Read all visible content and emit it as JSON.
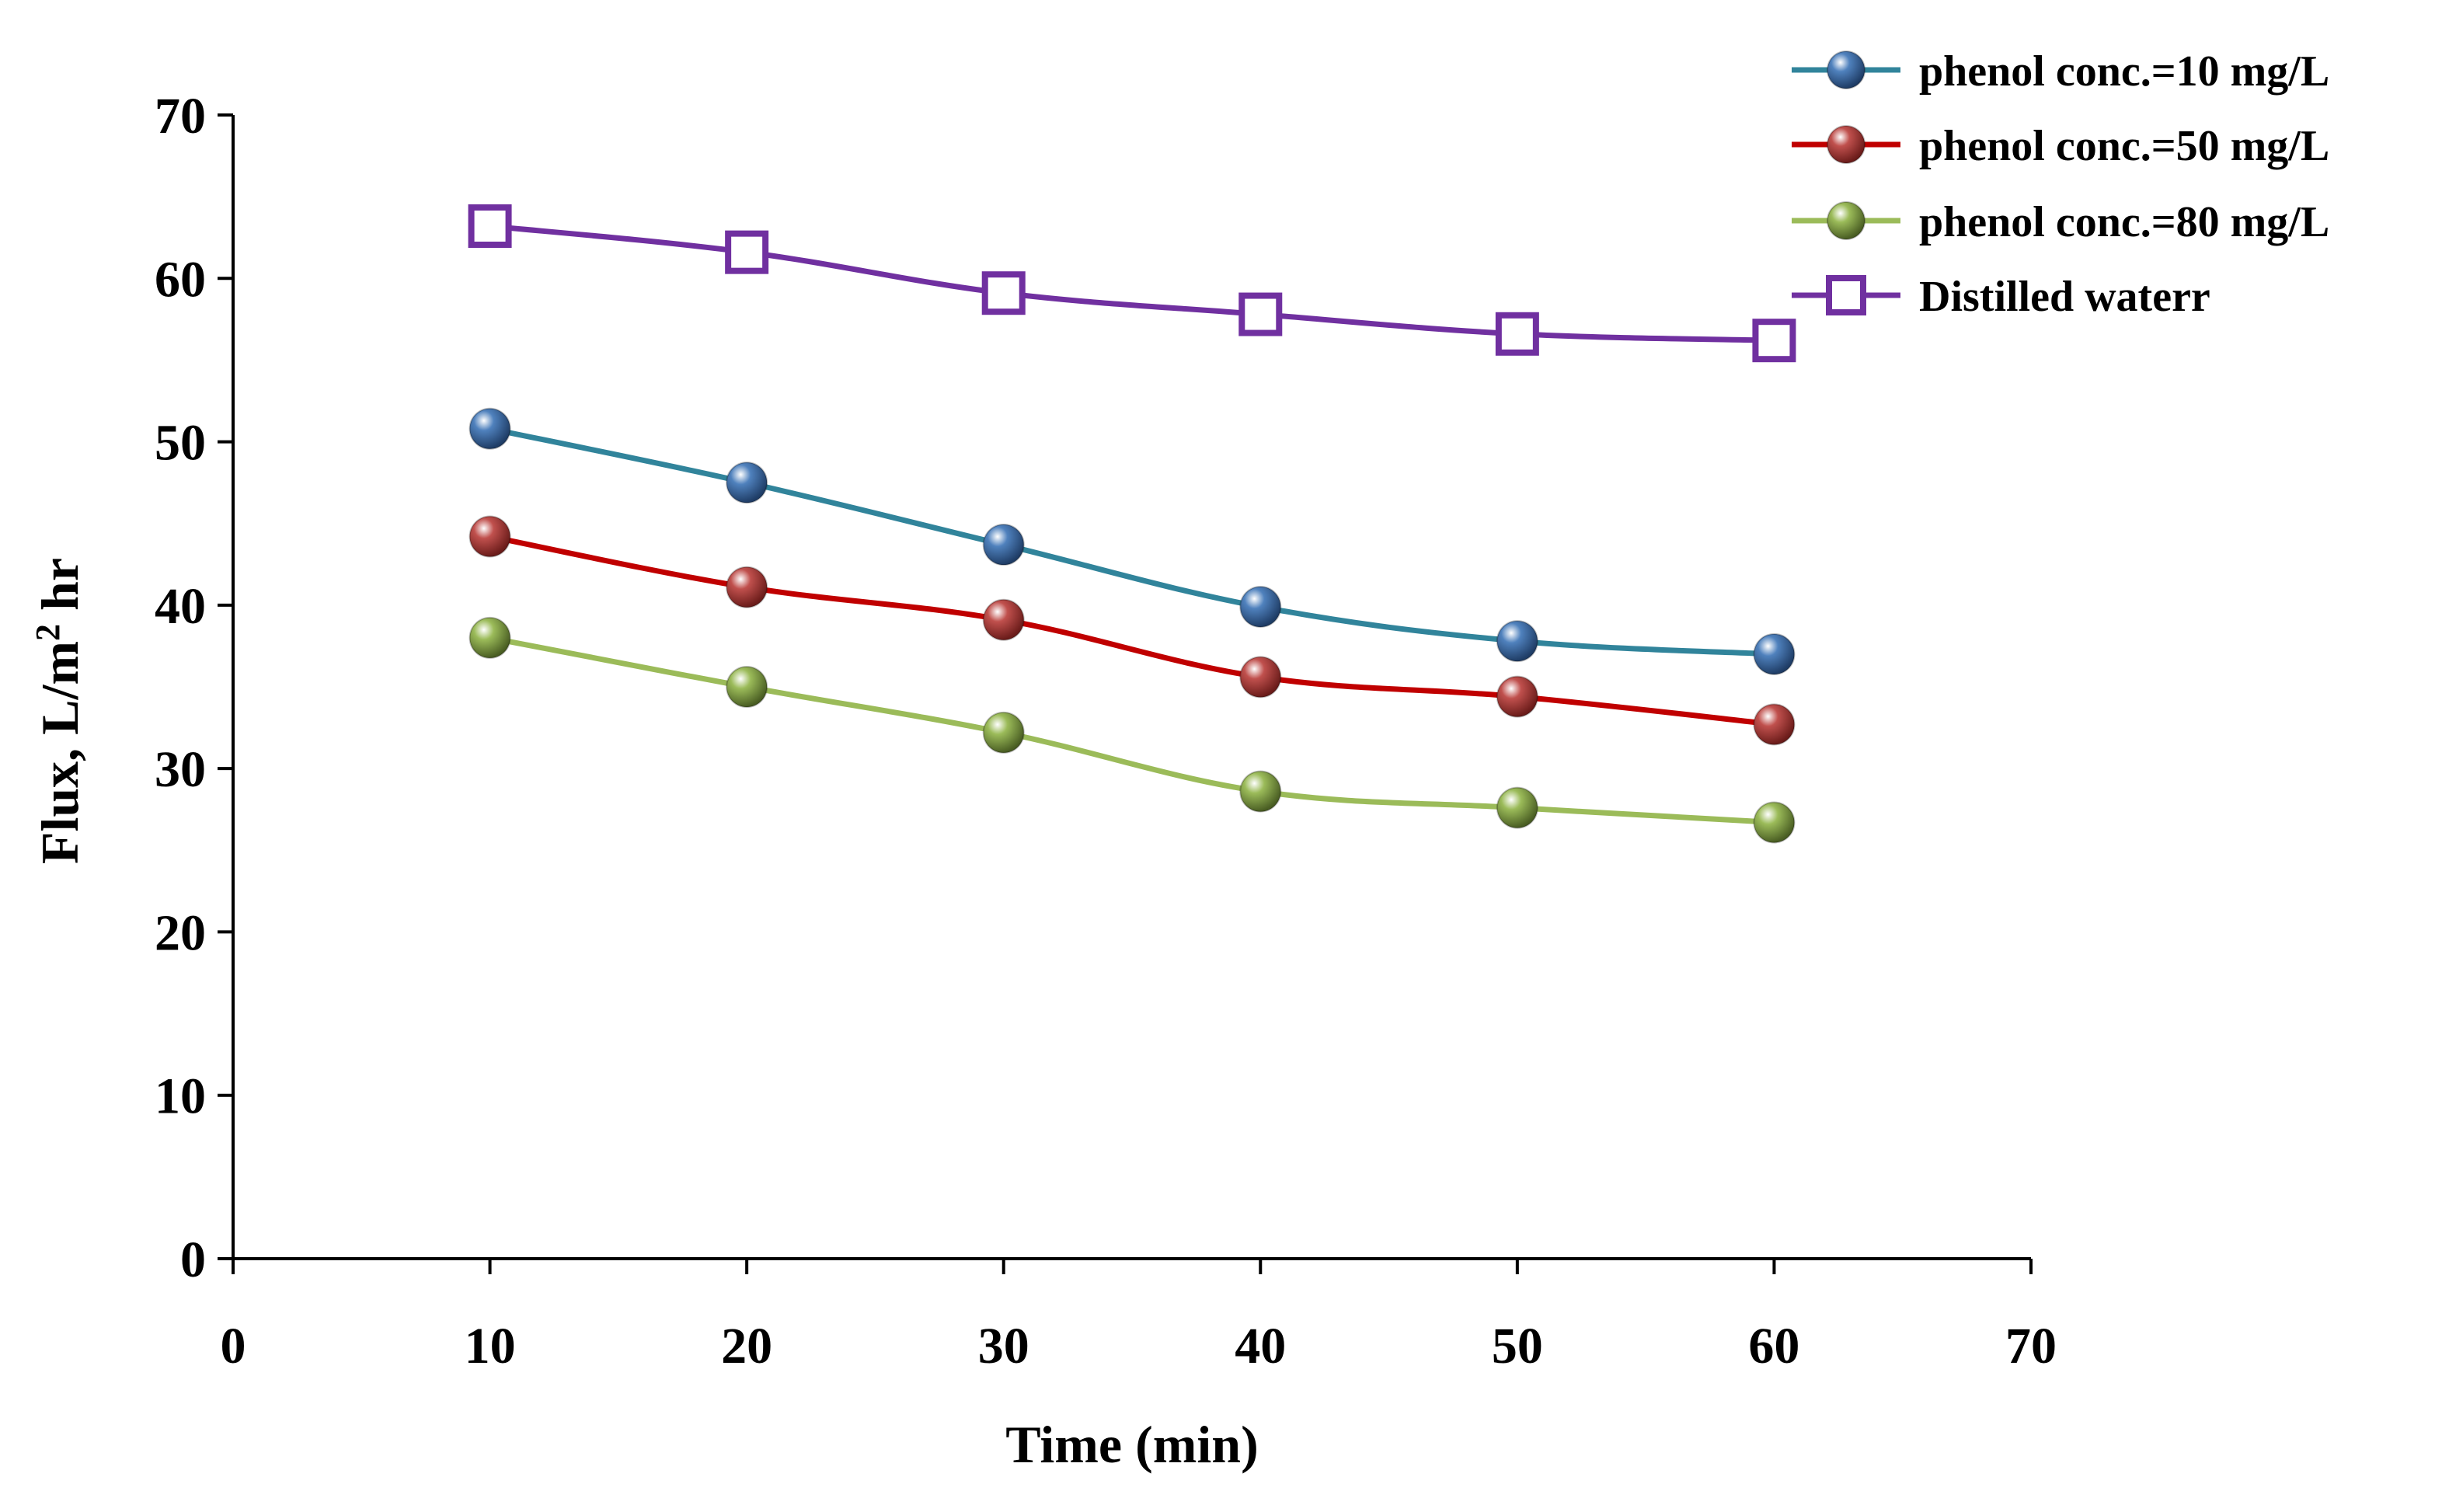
{
  "chart_data": {
    "type": "line",
    "title": "",
    "xlabel": "Time (min)",
    "ylabel_main": "Flux, L/m",
    "ylabel_sup": "2",
    "ylabel_end": " hr",
    "xlim": [
      0,
      70
    ],
    "ylim": [
      0,
      70
    ],
    "xticks": [
      0,
      10,
      20,
      30,
      40,
      50,
      60,
      70
    ],
    "yticks": [
      0,
      10,
      20,
      30,
      40,
      50,
      60,
      70
    ],
    "grid": false,
    "legend_position": "top-right",
    "x": [
      10,
      20,
      30,
      40,
      50,
      60
    ],
    "series": [
      {
        "name": "phenol conc.=10 mg/L",
        "values": [
          50.8,
          47.5,
          43.7,
          39.9,
          37.8,
          37.0
        ],
        "color": "#31849b",
        "marker": "sphere",
        "marker_color": "#4f81bd"
      },
      {
        "name": "phenol conc.=50 mg/L",
        "values": [
          44.2,
          41.1,
          39.1,
          35.6,
          34.4,
          32.7
        ],
        "color": "#c00000",
        "marker": "sphere",
        "marker_color": "#c0504d"
      },
      {
        "name": "phenol conc.=80 mg/L",
        "values": [
          38.0,
          35.0,
          32.2,
          28.6,
          27.6,
          26.7
        ],
        "color": "#9bbb59",
        "marker": "sphere",
        "marker_color": "#9bbb59"
      },
      {
        "name": "Distilled waterr",
        "values": [
          63.2,
          61.6,
          59.1,
          57.8,
          56.6,
          56.2
        ],
        "color": "#7030a0",
        "marker": "square",
        "marker_color": "#7030a0"
      }
    ]
  }
}
